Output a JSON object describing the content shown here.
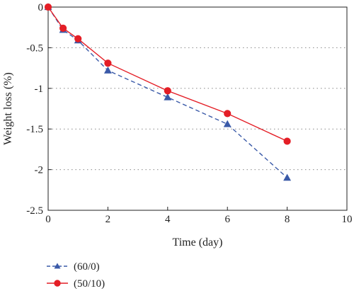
{
  "chart_data": {
    "type": "line",
    "title": "",
    "xlabel": "Time (day)",
    "ylabel": "Weight loss (%)",
    "xlim": [
      0,
      10
    ],
    "ylim": [
      -2.5,
      0
    ],
    "xticks": [
      0,
      2,
      4,
      6,
      8,
      10
    ],
    "yticks": [
      0,
      -0.5,
      -1,
      -1.5,
      -2,
      -2.5
    ],
    "xtick_labels": [
      "0",
      "2",
      "4",
      "6",
      "8",
      "10"
    ],
    "ytick_labels": [
      "0",
      "-0.5",
      "-1",
      "-1.5",
      "-2",
      "-2.5"
    ],
    "grid": "dotted horizontal",
    "legend_position": "bottom-left, below plot",
    "series": [
      {
        "name": "(60/0)",
        "color": "#3a5aa8",
        "line_style": "dashed",
        "marker": "triangle",
        "points": [
          [
            0,
            0
          ],
          [
            0.5,
            -0.28
          ],
          [
            1,
            -0.41
          ],
          [
            2,
            -0.78
          ],
          [
            4,
            -1.11
          ],
          [
            6,
            -1.44
          ],
          [
            8,
            -2.1
          ]
        ]
      },
      {
        "name": "(50/10)",
        "color": "#e41e26",
        "line_style": "solid",
        "marker": "circle",
        "points": [
          [
            0,
            0
          ],
          [
            0.5,
            -0.26
          ],
          [
            1,
            -0.39
          ],
          [
            2,
            -0.69
          ],
          [
            4,
            -1.03
          ],
          [
            6,
            -1.31
          ],
          [
            8,
            -1.65
          ]
        ]
      }
    ]
  }
}
